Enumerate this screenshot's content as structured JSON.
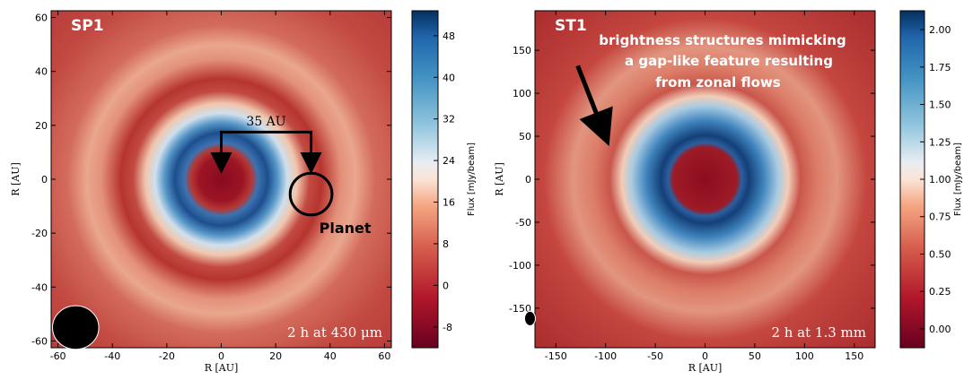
{
  "chart_data": [
    {
      "type": "image",
      "title": "SP1",
      "xlabel": "R [AU]",
      "ylabel": "R [AU]",
      "xlim": [
        -62.5,
        62.5
      ],
      "ylim": [
        -62.5,
        62.5
      ],
      "xticks": [
        -60,
        -40,
        -20,
        0,
        20,
        40,
        60
      ],
      "yticks": [
        -60,
        -40,
        -20,
        0,
        20,
        40,
        60
      ],
      "colorbar": {
        "label": "Flux [mJy/beam]",
        "lim": [
          -12,
          52.8
        ],
        "ticks": [
          -8,
          0,
          8,
          16,
          24,
          32,
          40,
          48
        ]
      },
      "annotations": {
        "scale": "35 AU",
        "planet": "Planet",
        "note": "2 h at 430 μm"
      }
    },
    {
      "type": "image",
      "title": "ST1",
      "xlabel": "R [AU]",
      "ylabel": "R [AU]",
      "xlim": [
        -171,
        171
      ],
      "ylim": [
        -196,
        196
      ],
      "xticks": [
        -150,
        -100,
        -50,
        0,
        50,
        100,
        150
      ],
      "yticks": [
        -150,
        -100,
        -50,
        0,
        50,
        100,
        150
      ],
      "colorbar": {
        "label": "Flux [mJy/beam]",
        "lim": [
          -0.126,
          2.126
        ],
        "ticks": [
          {
            "value": 0,
            "label": "0.00"
          },
          {
            "value": 0.25,
            "label": "0.25"
          },
          {
            "value": 0.5,
            "label": "0.50"
          },
          {
            "value": 0.75,
            "label": "0.75"
          },
          {
            "value": 1,
            "label": "1.00"
          },
          {
            "value": 1.25,
            "label": "1.25"
          },
          {
            "value": 1.5,
            "label": "1.50"
          },
          {
            "value": 1.75,
            "label": "1.75"
          },
          {
            "value": 2,
            "label": "2.00"
          }
        ]
      },
      "annotations": {
        "note": "2 h at 1.3 mm",
        "text": [
          "brightness structures mimicking",
          "a gap-like feature resulting",
          "from zonal flows"
        ]
      }
    }
  ]
}
